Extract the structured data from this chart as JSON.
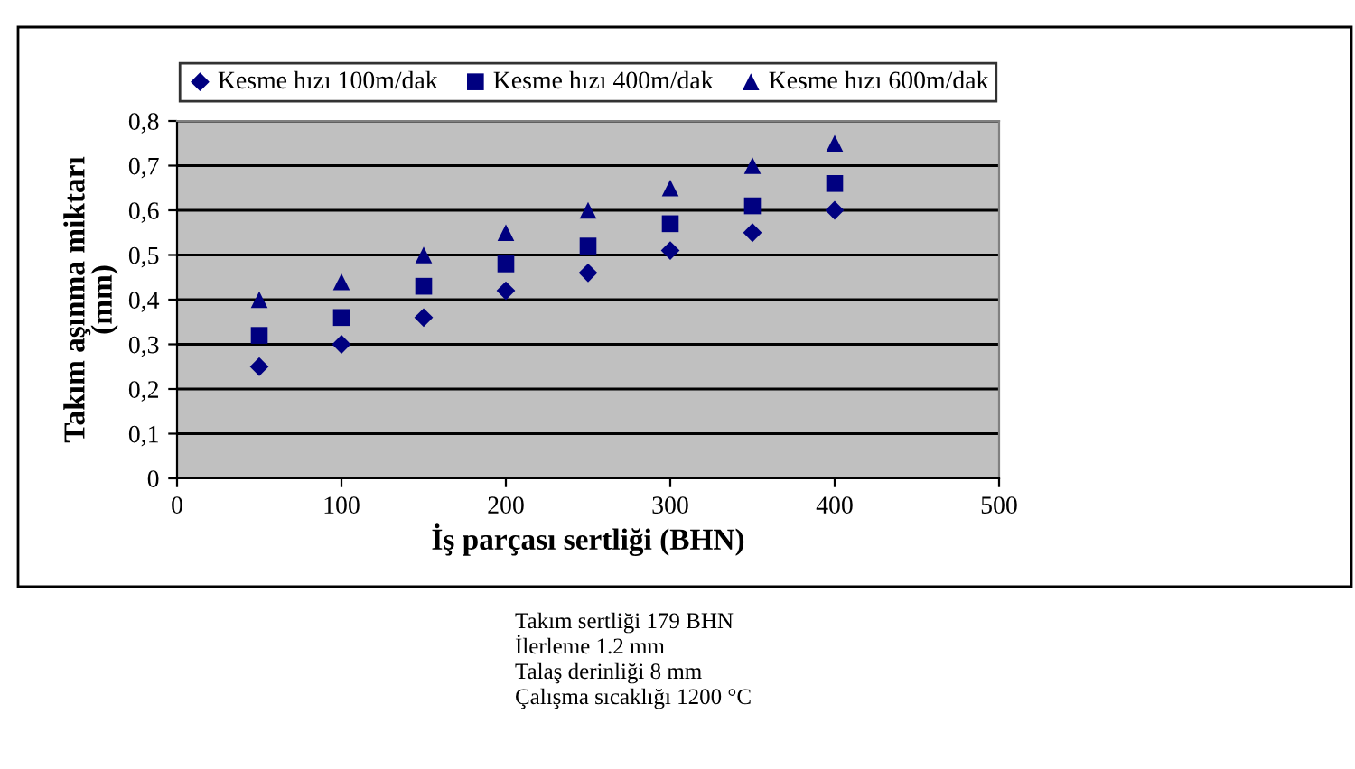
{
  "chart_data": {
    "type": "scatter",
    "xlabel": "İş parçası sertliği (BHN)",
    "ylabel": "Takım aşınma miktarı\n(mm)",
    "x": [
      50,
      100,
      150,
      200,
      250,
      300,
      350,
      400
    ],
    "series": [
      {
        "name": "Kesme hızı 100m/dak",
        "color": "#000080",
        "marker": "diamond",
        "values": [
          0.25,
          0.3,
          0.36,
          0.42,
          0.46,
          0.51,
          0.55,
          0.6
        ]
      },
      {
        "name": "Kesme hızı 400m/dak",
        "color": "#000080",
        "marker": "square",
        "values": [
          0.32,
          0.36,
          0.43,
          0.48,
          0.52,
          0.57,
          0.61,
          0.66
        ]
      },
      {
        "name": "Kesme hızı 600m/dak",
        "color": "#000080",
        "marker": "triangle",
        "values": [
          0.4,
          0.44,
          0.5,
          0.55,
          0.6,
          0.65,
          0.7,
          0.75
        ]
      }
    ],
    "xlim": [
      0,
      500
    ],
    "xticks": [
      0,
      100,
      200,
      300,
      400,
      500
    ],
    "ylim": [
      0,
      0.8
    ],
    "yticks": [
      0,
      {
        "value": 0.1,
        "label": "0,1"
      },
      {
        "value": 0.2,
        "label": "0,2"
      },
      {
        "value": 0.3,
        "label": "0,3"
      },
      {
        "value": 0.4,
        "label": "0,4"
      },
      {
        "value": 0.5,
        "label": "0,5"
      },
      {
        "value": 0.6,
        "label": "0,6"
      },
      {
        "value": 0.7,
        "label": "0,7"
      },
      {
        "value": 0.8,
        "label": "0,8"
      }
    ],
    "grid": "y",
    "legend": "top",
    "annotations": [
      "Takım sertliği 179 BHN",
      "İlerleme 1.2 mm",
      "Talaş derinliği 8 mm",
      "Çalışma sıcaklığı 1200 °C"
    ]
  }
}
